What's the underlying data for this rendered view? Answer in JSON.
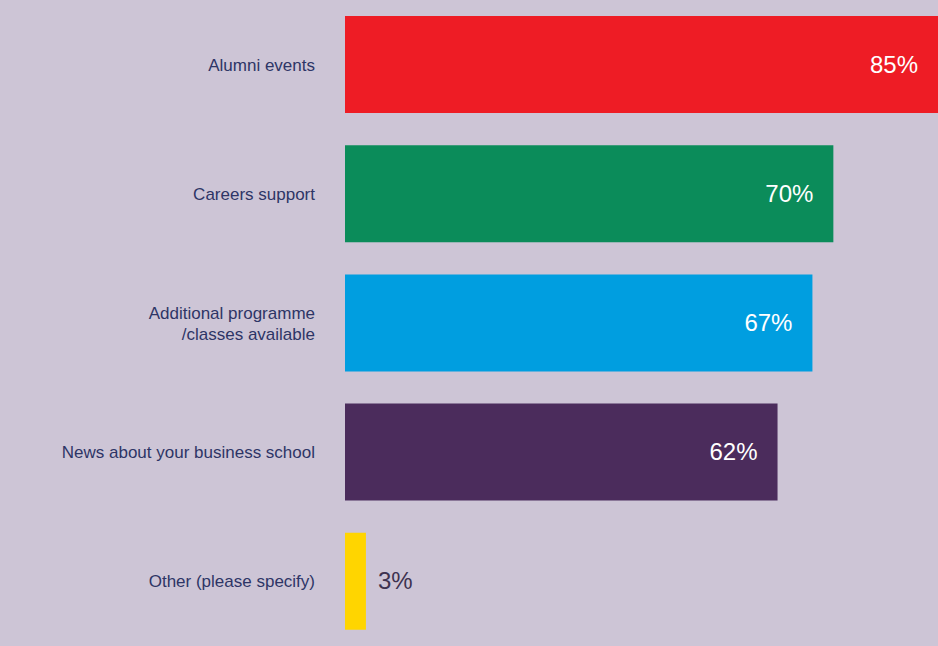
{
  "chart_data": {
    "type": "bar",
    "orientation": "horizontal",
    "categories": [
      "Alumni events",
      "Careers support",
      "Additional programme /classes available",
      "News about your business school",
      "Other (please specify)"
    ],
    "values": [
      85,
      70,
      67,
      62,
      3
    ],
    "value_labels": [
      "85%",
      "70%",
      "67%",
      "62%",
      "3%"
    ],
    "colors": [
      "#ee1c25",
      "#0b8c5a",
      "#009ee0",
      "#4b2c5c",
      "#ffd500"
    ],
    "xlim": [
      0,
      85
    ],
    "data_labels": true,
    "tick_labels": "y",
    "grid": false
  }
}
